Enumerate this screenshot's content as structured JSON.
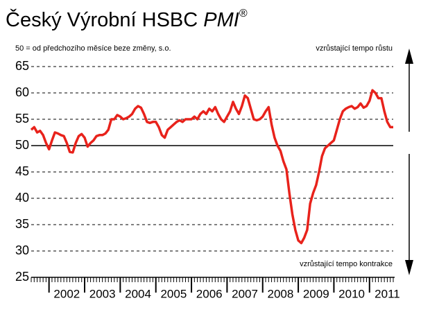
{
  "chart_data": {
    "type": "line",
    "title_parts": [
      "Český Výrobní HSBC",
      "PMI",
      "®"
    ],
    "subtitle": "50 = od předchozího měsíce beze změny, s.o.",
    "annotations": [
      "vzrůstající tempo růstu",
      "vzrůstající tempo kontrakce"
    ],
    "categories": [
      null,
      null,
      null,
      null,
      null,
      null,
      null,
      null,
      null,
      null,
      null,
      null,
      "2002",
      null,
      null,
      null,
      null,
      null,
      null,
      null,
      null,
      null,
      null,
      null,
      "2003",
      null,
      null,
      null,
      null,
      null,
      null,
      null,
      null,
      null,
      null,
      null,
      "2004",
      null,
      null,
      null,
      null,
      null,
      null,
      null,
      null,
      null,
      null,
      null,
      "2005",
      null,
      null,
      null,
      null,
      null,
      null,
      null,
      null,
      null,
      null,
      null,
      "2006",
      null,
      null,
      null,
      null,
      null,
      null,
      null,
      null,
      null,
      null,
      null,
      "2007",
      null,
      null,
      null,
      null,
      null,
      null,
      null,
      null,
      null,
      null,
      null,
      "2008",
      null,
      null,
      null,
      null,
      null,
      null,
      null,
      null,
      null,
      null,
      null,
      "2009",
      null,
      null,
      null,
      null,
      null,
      null,
      null,
      null,
      null,
      null,
      null,
      "2010",
      null,
      null,
      null,
      null,
      null,
      null,
      null,
      null,
      null,
      null,
      null,
      "2011",
      null,
      null
    ],
    "series": [
      {
        "name": "PMI",
        "color": "#e8221b",
        "values": [
          53,
          53.5,
          52.5,
          52.8,
          52,
          50.5,
          49.3,
          51,
          52.5,
          52.3,
          52,
          51.8,
          50.5,
          48.8,
          48.7,
          50.5,
          51.8,
          52.2,
          51.5,
          49.8,
          50.5,
          51,
          51.8,
          52,
          52,
          52.3,
          53,
          55,
          55,
          55.8,
          55.5,
          55,
          55.2,
          55.5,
          56,
          57,
          57.5,
          57.2,
          56,
          54.5,
          54.3,
          54.5,
          54.5,
          53.5,
          52,
          51.5,
          53,
          53.5,
          54,
          54.5,
          54.8,
          54.5,
          55,
          55,
          55,
          55.5,
          55,
          56,
          56.5,
          56,
          57,
          56.5,
          57.3,
          56,
          55,
          54.5,
          55.5,
          56.5,
          58.3,
          57,
          56,
          57.5,
          59.5,
          59,
          57,
          55,
          54.8,
          55,
          55.5,
          56.5,
          57.3,
          54,
          51.5,
          50,
          49,
          47,
          45.5,
          41,
          37,
          34,
          32,
          31.5,
          32.5,
          34,
          39,
          41,
          42.5,
          45,
          48,
          49.5,
          50,
          50.5,
          51,
          53,
          55,
          56.5,
          57,
          57.3,
          57.5,
          57,
          57.3,
          58,
          57.2,
          57.5,
          58.5,
          60.5,
          60,
          59,
          59,
          56.5,
          54.5,
          53.5,
          53.5
        ]
      }
    ],
    "ylim": [
      25,
      65
    ],
    "yticks": [
      25,
      30,
      35,
      40,
      45,
      50,
      55,
      60,
      65
    ],
    "grid": true,
    "baseline": 50
  }
}
